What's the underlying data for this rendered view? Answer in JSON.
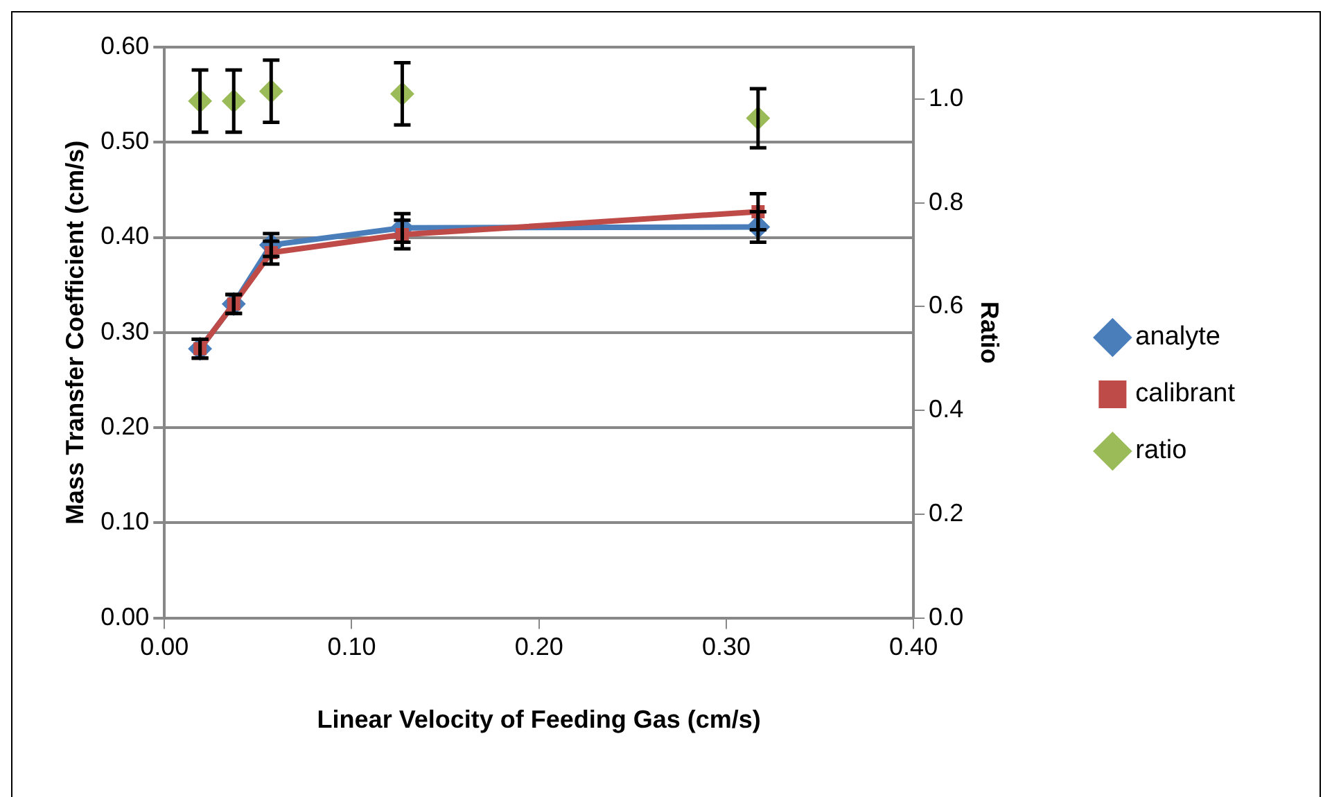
{
  "chart_data": {
    "type": "scatter",
    "xlabel": "Linear Velocity of Feeding Gas (cm/s)",
    "ylabel": "Mass Transfer Coefficient (cm/s)",
    "y2label": "Ratio",
    "x": [
      0.019,
      0.037,
      0.057,
      0.127,
      0.317
    ],
    "series": [
      {
        "name": "analyte",
        "type": "line",
        "color": "#4a7ebb",
        "marker": "diamond",
        "values": [
          0.283,
          0.33,
          0.392,
          0.41,
          0.411
        ],
        "errors": [
          0.01,
          0.01,
          0.012,
          0.015,
          0.016
        ]
      },
      {
        "name": "calibrant",
        "type": "line",
        "color": "#be4b48",
        "marker": "square",
        "values": [
          0.283,
          0.33,
          0.384,
          0.403,
          0.427
        ],
        "errors": [
          0.01,
          0.01,
          0.012,
          0.015,
          0.019
        ]
      },
      {
        "name": "ratio",
        "type": "scatter",
        "axis": "y2",
        "color": "#9bbb59",
        "marker": "diamond",
        "values": [
          0.996,
          0.996,
          1.015,
          1.01,
          0.963
        ],
        "errors": [
          0.06,
          0.06,
          0.06,
          0.06,
          0.057
        ]
      }
    ],
    "xlim": [
      0,
      0.4
    ],
    "xticks": [
      {
        "value": 0,
        "label": "0.00"
      },
      {
        "value": 0.1,
        "label": "0.10"
      },
      {
        "value": 0.2,
        "label": "0.20"
      },
      {
        "value": 0.3,
        "label": "0.30"
      },
      {
        "value": 0.4,
        "label": "0.40"
      }
    ],
    "ylim": [
      0,
      0.6
    ],
    "yticks": [
      {
        "value": 0,
        "label": "0.00"
      },
      {
        "value": 0.1,
        "label": "0.10"
      },
      {
        "value": 0.2,
        "label": "0.20"
      },
      {
        "value": 0.3,
        "label": "0.30"
      },
      {
        "value": 0.4,
        "label": "0.40"
      },
      {
        "value": 0.5,
        "label": "0.50"
      },
      {
        "value": 0.6,
        "label": "0.60"
      }
    ],
    "y2lim": [
      0,
      1.1
    ],
    "y2ticks": [
      {
        "value": 0,
        "label": "0.0"
      },
      {
        "value": 0.2,
        "label": "0.2"
      },
      {
        "value": 0.4,
        "label": "0.4"
      },
      {
        "value": 0.6,
        "label": "0.6"
      },
      {
        "value": 0.8,
        "label": "0.8"
      },
      {
        "value": 1,
        "label": "1.0"
      }
    ],
    "grid": "y",
    "legend": "right",
    "line_style": "solid"
  }
}
